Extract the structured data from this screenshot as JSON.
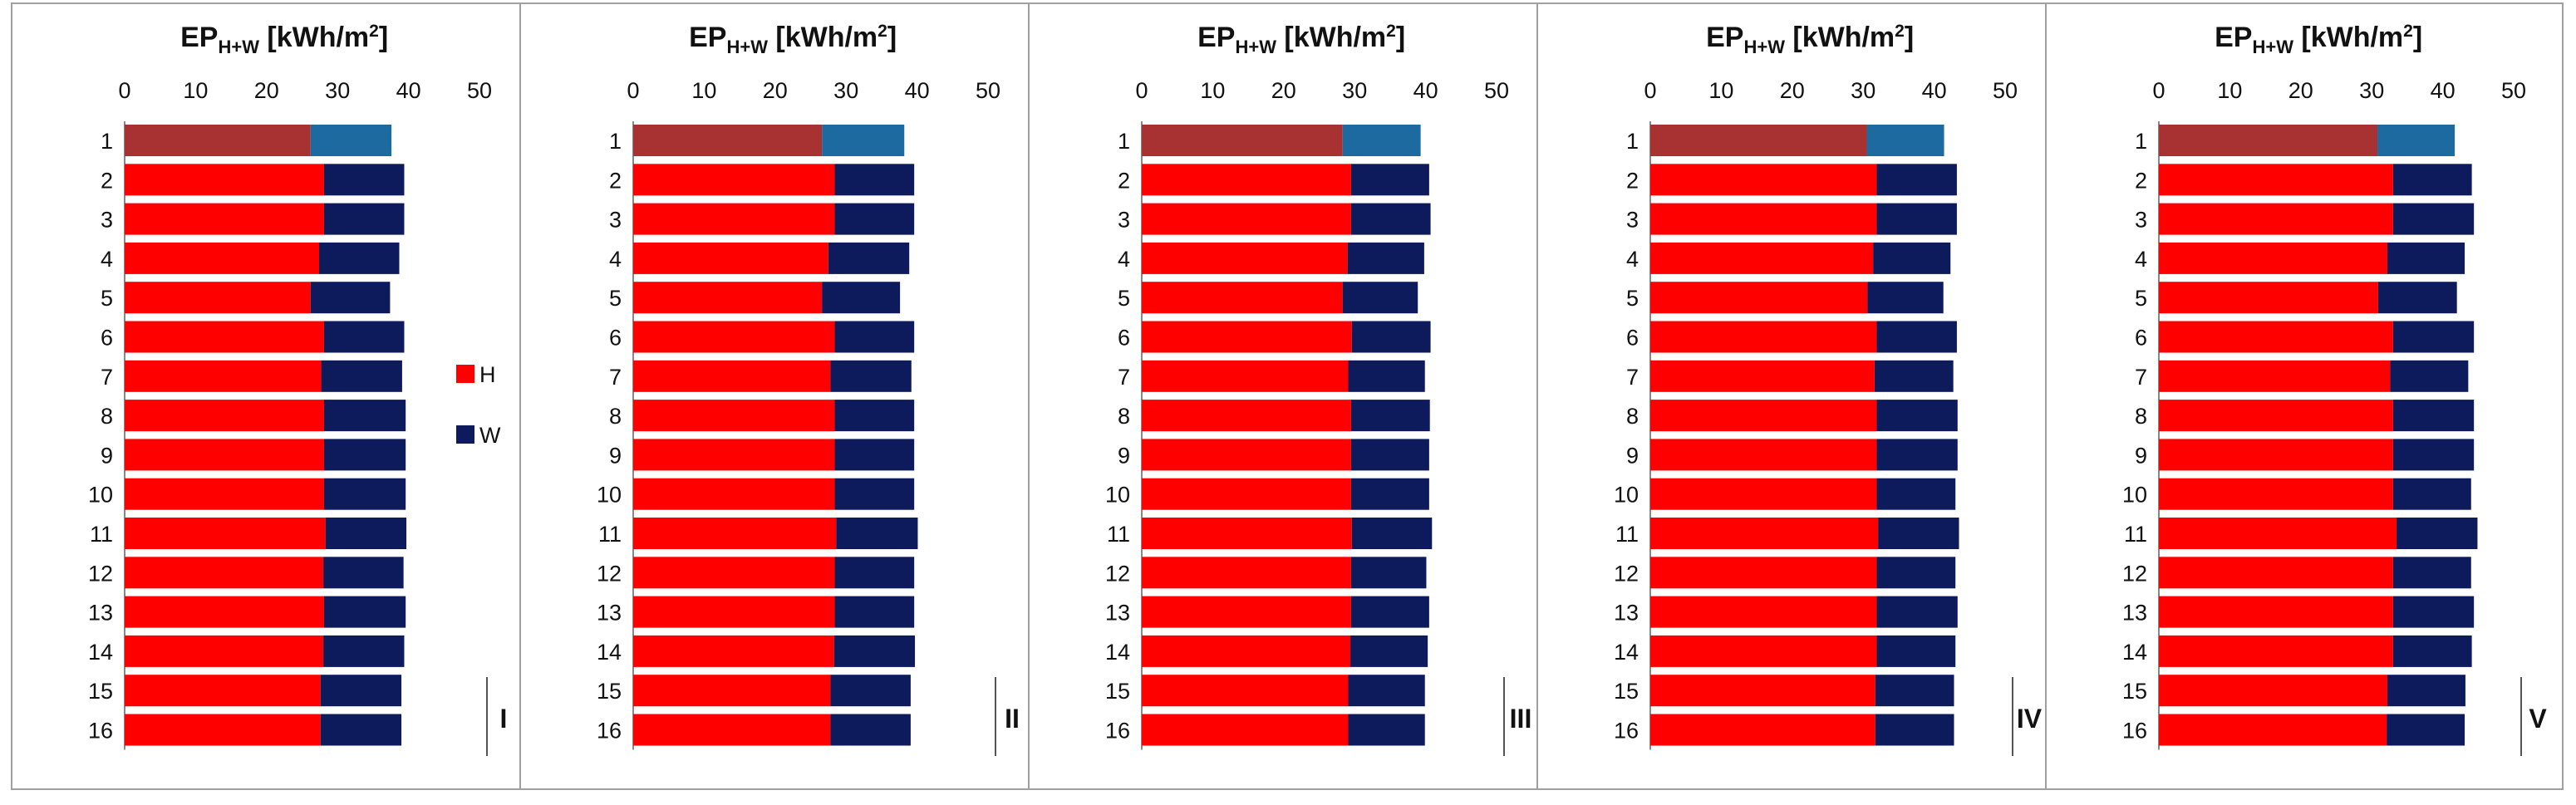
{
  "chart_data": {
    "type": "bar",
    "orientation": "horizontal",
    "stacked": true,
    "xlim": [
      0,
      50
    ],
    "xticks": [
      "0",
      "10",
      "20",
      "30",
      "40",
      "50"
    ],
    "title_main": "EP",
    "title_sub": "H+W",
    "title_unit": " [kWh/m",
    "title_sup": "2",
    "title_close": "]",
    "categories": [
      "1",
      "2",
      "3",
      "4",
      "5",
      "6",
      "7",
      "8",
      "9",
      "10",
      "11",
      "12",
      "13",
      "14",
      "15",
      "16"
    ],
    "legend": [
      {
        "key": "H",
        "label": "H",
        "color": "#ff0000"
      },
      {
        "key": "W",
        "label": "W",
        "color": "#0d1a5c"
      }
    ],
    "reference_colors": {
      "H": "#a83232",
      "W": "#1c6aa0"
    },
    "panels": [
      {
        "label": "I",
        "H": [
          26.2,
          28.1,
          28.1,
          27.4,
          26.2,
          28.1,
          27.7,
          28.1,
          28.1,
          28.1,
          28.3,
          28.0,
          28.1,
          28.0,
          27.6,
          27.6
        ],
        "W": [
          11.4,
          11.3,
          11.3,
          11.3,
          11.2,
          11.3,
          11.4,
          11.5,
          11.5,
          11.5,
          11.4,
          11.3,
          11.5,
          11.4,
          11.4,
          11.4
        ]
      },
      {
        "label": "II",
        "H": [
          26.6,
          28.4,
          28.4,
          27.5,
          26.6,
          28.4,
          27.8,
          28.4,
          28.4,
          28.4,
          28.6,
          28.4,
          28.4,
          28.3,
          27.8,
          27.8
        ],
        "W": [
          11.6,
          11.2,
          11.2,
          11.4,
          11.0,
          11.2,
          11.4,
          11.2,
          11.2,
          11.2,
          11.5,
          11.2,
          11.2,
          11.4,
          11.3,
          11.3
        ]
      },
      {
        "label": "III",
        "H": [
          28.3,
          29.5,
          29.5,
          29.0,
          28.3,
          29.6,
          29.1,
          29.5,
          29.5,
          29.5,
          29.6,
          29.5,
          29.5,
          29.4,
          29.1,
          29.1
        ],
        "W": [
          11.0,
          11.0,
          11.2,
          10.8,
          10.6,
          11.1,
          10.8,
          11.1,
          11.0,
          11.0,
          11.3,
          10.6,
          11.0,
          10.9,
          10.8,
          10.8
        ]
      },
      {
        "label": "IV",
        "H": [
          30.5,
          31.9,
          31.9,
          31.4,
          30.6,
          31.9,
          31.6,
          31.9,
          31.9,
          31.9,
          32.1,
          31.9,
          31.9,
          31.9,
          31.7,
          31.7
        ],
        "W": [
          10.9,
          11.3,
          11.3,
          10.9,
          10.7,
          11.3,
          11.1,
          11.4,
          11.4,
          11.1,
          11.4,
          11.1,
          11.4,
          11.1,
          11.1,
          11.1
        ]
      },
      {
        "label": "V",
        "H": [
          30.8,
          33.0,
          33.0,
          32.2,
          30.9,
          33.0,
          32.6,
          33.0,
          33.0,
          33.0,
          33.5,
          33.0,
          33.0,
          33.0,
          32.2,
          32.1
        ],
        "W": [
          10.9,
          11.1,
          11.4,
          10.9,
          11.1,
          11.4,
          11.0,
          11.4,
          11.4,
          11.0,
          11.4,
          11.0,
          11.4,
          11.1,
          11.0,
          11.0
        ]
      }
    ]
  }
}
